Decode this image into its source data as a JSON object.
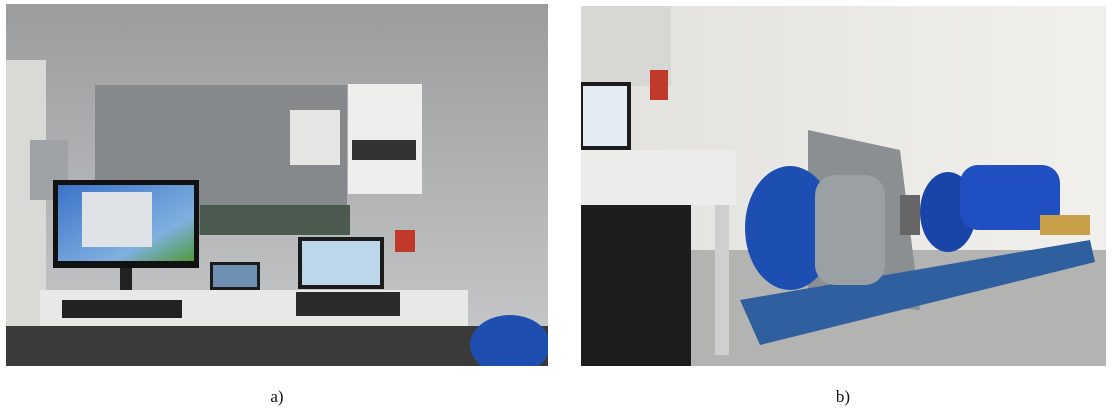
{
  "figure": {
    "panels": [
      {
        "label": "a)"
      },
      {
        "label": "b)"
      }
    ]
  }
}
